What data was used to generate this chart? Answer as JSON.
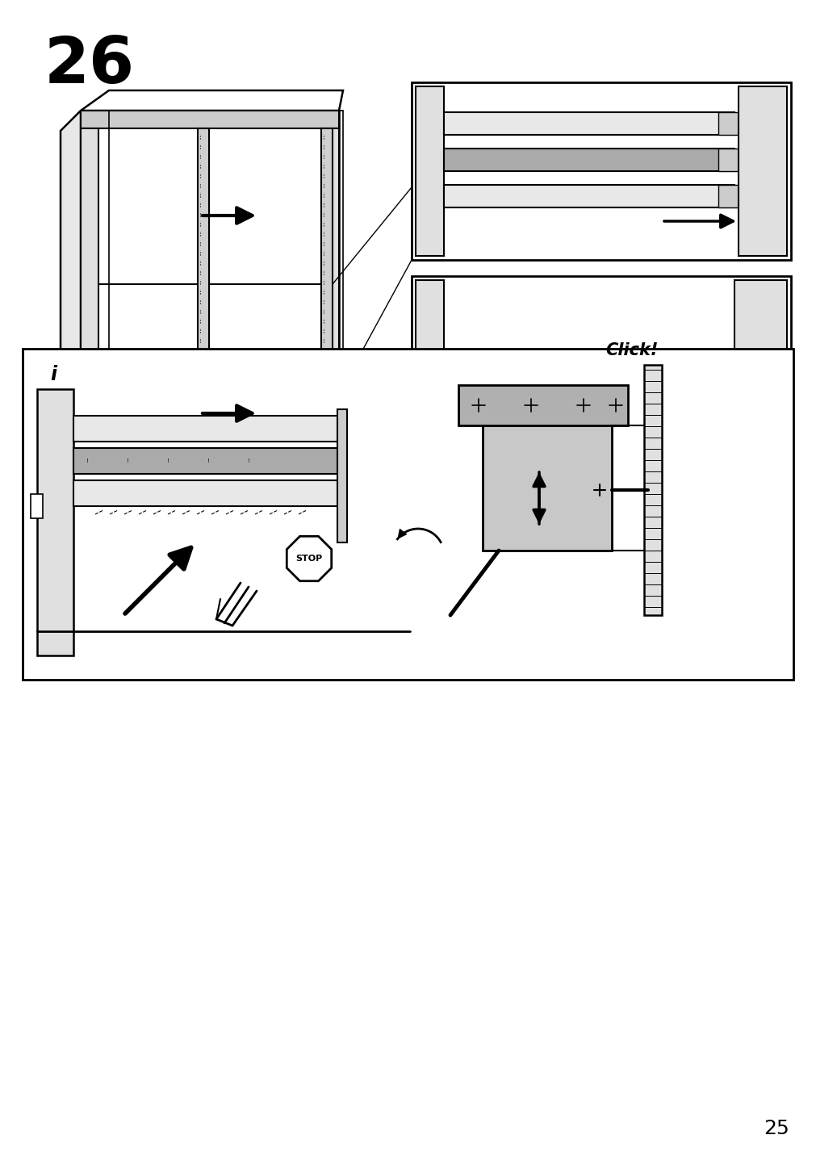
{
  "page_number": "25",
  "step_number": "26",
  "background_color": "#ffffff",
  "line_color": "#000000",
  "light_gray": "#cccccc",
  "mid_gray": "#aaaaaa",
  "dark_gray": "#555555",
  "click_text": "Click!",
  "stop_text": "STOP",
  "info_symbol": "i"
}
